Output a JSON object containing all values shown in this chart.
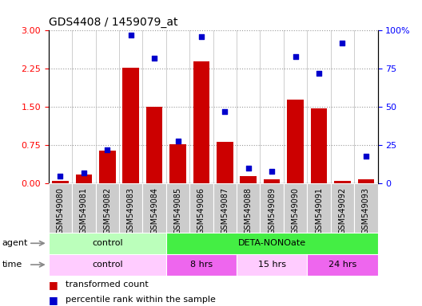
{
  "title": "GDS4408 / 1459079_at",
  "samples": [
    "GSM549080",
    "GSM549081",
    "GSM549082",
    "GSM549083",
    "GSM549084",
    "GSM549085",
    "GSM549086",
    "GSM549087",
    "GSM549088",
    "GSM549089",
    "GSM549090",
    "GSM549091",
    "GSM549092",
    "GSM549093"
  ],
  "transformed_count": [
    0.05,
    0.18,
    0.65,
    2.27,
    1.5,
    0.77,
    2.4,
    0.82,
    0.15,
    0.08,
    1.65,
    1.47,
    0.05,
    0.08
  ],
  "percentile_rank": [
    5,
    7,
    22,
    97,
    82,
    28,
    96,
    47,
    10,
    8,
    83,
    72,
    92,
    18
  ],
  "ylim_left": [
    0,
    3
  ],
  "ylim_right": [
    0,
    100
  ],
  "yticks_left": [
    0,
    0.75,
    1.5,
    2.25,
    3
  ],
  "yticks_right": [
    0,
    25,
    50,
    75,
    100
  ],
  "bar_color": "#cc0000",
  "dot_color": "#0000cc",
  "grid_color": "#999999",
  "plot_bg": "#ffffff",
  "fig_bg": "#ffffff",
  "agent_groups": [
    {
      "label": "control",
      "start": 0,
      "end": 5,
      "color": "#bbffbb"
    },
    {
      "label": "DETA-NONOate",
      "start": 5,
      "end": 14,
      "color": "#44ee44"
    }
  ],
  "time_groups": [
    {
      "label": "control",
      "start": 0,
      "end": 5,
      "color": "#ffccff"
    },
    {
      "label": "8 hrs",
      "start": 5,
      "end": 8,
      "color": "#ee66ee"
    },
    {
      "label": "15 hrs",
      "start": 8,
      "end": 11,
      "color": "#ffccff"
    },
    {
      "label": "24 hrs",
      "start": 11,
      "end": 14,
      "color": "#ee66ee"
    }
  ],
  "tick_bg": "#cccccc",
  "legend_items": [
    {
      "label": "transformed count",
      "color": "#cc0000"
    },
    {
      "label": "percentile rank within the sample",
      "color": "#0000cc"
    }
  ],
  "bar_width": 0.7
}
